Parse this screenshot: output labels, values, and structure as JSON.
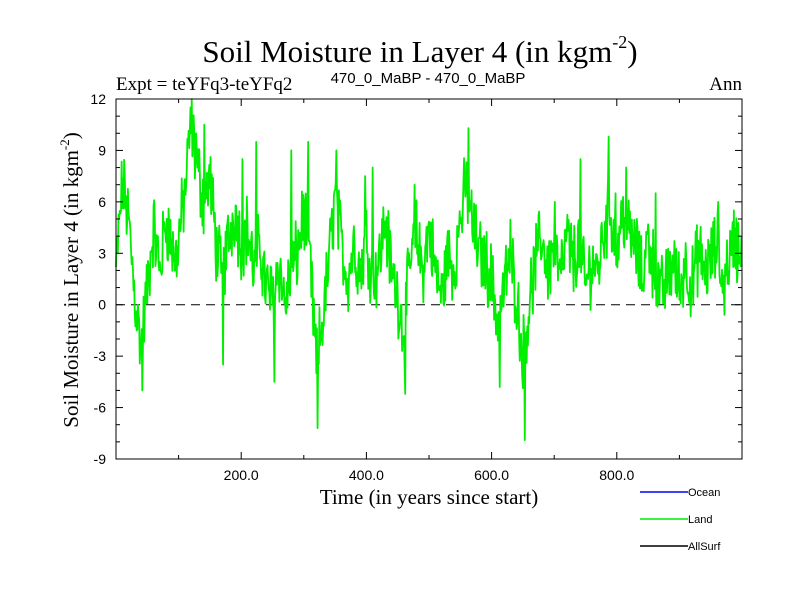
{
  "chart_data": {
    "type": "line",
    "title": "Soil Moisture in Layer 4 (in kgm",
    "title_sup": "-2",
    "title_close": ")",
    "subtitle_left": "Expt = teYFq3-teYFq2",
    "subtitle_center": "470_0_MaBP - 470_0_MaBP",
    "subtitle_right": "Ann",
    "xlabel": "Time (in years since start)",
    "ylabel": "Soil Moisture in Layer 4 (in kgm",
    "ylabel_sup": "-2",
    "ylabel_close": ")",
    "xlim": [
      0,
      1000
    ],
    "ylim": [
      -9,
      12
    ],
    "x_ticks": [
      200,
      400,
      600,
      800
    ],
    "x_tick_labels": [
      "200.0",
      "400.0",
      "600.0",
      "800.0"
    ],
    "y_ticks": [
      -9,
      -6,
      -3,
      0,
      3,
      6,
      9,
      12
    ],
    "y_tick_labels": [
      "-9",
      "-6",
      "-3",
      "0",
      "3",
      "6",
      "9",
      "12"
    ],
    "zero_line": 0,
    "legend": [
      {
        "label": "Ocean",
        "color": "#0000ff"
      },
      {
        "label": "Land",
        "color": "#00ee00"
      },
      {
        "label": "AllSurf",
        "color": "#000000"
      }
    ],
    "series": [
      {
        "name": "Land",
        "color": "#00ee00",
        "x_start": 0,
        "x_step": 1,
        "anchors": [
          [
            0,
            2.0
          ],
          [
            10,
            7.0
          ],
          [
            20,
            5.0
          ],
          [
            30,
            0.5
          ],
          [
            40,
            -2.5
          ],
          [
            50,
            1.0
          ],
          [
            60,
            4.5
          ],
          [
            70,
            2.0
          ],
          [
            80,
            5.0
          ],
          [
            95,
            2.5
          ],
          [
            110,
            6.5
          ],
          [
            120,
            10.5
          ],
          [
            130,
            8.0
          ],
          [
            140,
            6.0
          ],
          [
            150,
            7.5
          ],
          [
            160,
            3.5
          ],
          [
            170,
            1.5
          ],
          [
            180,
            4.0
          ],
          [
            190,
            5.5
          ],
          [
            200,
            3.5
          ],
          [
            210,
            4.5
          ],
          [
            220,
            2.0
          ],
          [
            230,
            3.5
          ],
          [
            240,
            1.0
          ],
          [
            250,
            0.5
          ],
          [
            260,
            2.5
          ],
          [
            270,
            0.0
          ],
          [
            280,
            2.0
          ],
          [
            290,
            3.0
          ],
          [
            300,
            5.5
          ],
          [
            310,
            2.5
          ],
          [
            320,
            -3.5
          ],
          [
            330,
            -1.0
          ],
          [
            340,
            2.5
          ],
          [
            350,
            6.5
          ],
          [
            360,
            3.5
          ],
          [
            370,
            1.5
          ],
          [
            380,
            3.5
          ],
          [
            390,
            2.0
          ],
          [
            400,
            4.0
          ],
          [
            410,
            1.5
          ],
          [
            420,
            2.5
          ],
          [
            430,
            5.0
          ],
          [
            440,
            2.0
          ],
          [
            450,
            0.5
          ],
          [
            460,
            -1.5
          ],
          [
            470,
            2.5
          ],
          [
            480,
            4.0
          ],
          [
            490,
            2.0
          ],
          [
            500,
            4.5
          ],
          [
            510,
            2.0
          ],
          [
            520,
            0.5
          ],
          [
            530,
            3.0
          ],
          [
            540,
            2.0
          ],
          [
            550,
            5.0
          ],
          [
            560,
            7.0
          ],
          [
            570,
            4.5
          ],
          [
            580,
            3.0
          ],
          [
            590,
            2.5
          ],
          [
            600,
            1.5
          ],
          [
            610,
            -1.0
          ],
          [
            620,
            1.0
          ],
          [
            630,
            3.0
          ],
          [
            640,
            0.5
          ],
          [
            650,
            -3.0
          ],
          [
            660,
            0.0
          ],
          [
            670,
            2.5
          ],
          [
            680,
            4.0
          ],
          [
            690,
            2.0
          ],
          [
            700,
            3.5
          ],
          [
            710,
            1.5
          ],
          [
            720,
            4.0
          ],
          [
            730,
            2.5
          ],
          [
            740,
            3.5
          ],
          [
            750,
            1.0
          ],
          [
            760,
            2.5
          ],
          [
            770,
            2.0
          ],
          [
            780,
            4.5
          ],
          [
            790,
            5.5
          ],
          [
            800,
            3.0
          ],
          [
            810,
            5.5
          ],
          [
            820,
            4.0
          ],
          [
            830,
            3.5
          ],
          [
            840,
            1.5
          ],
          [
            850,
            4.0
          ],
          [
            860,
            2.0
          ],
          [
            870,
            0.5
          ],
          [
            880,
            1.5
          ],
          [
            890,
            2.5
          ],
          [
            900,
            1.0
          ],
          [
            910,
            2.5
          ],
          [
            920,
            1.0
          ],
          [
            930,
            3.0
          ],
          [
            940,
            2.0
          ],
          [
            950,
            2.5
          ],
          [
            960,
            3.5
          ],
          [
            970,
            1.0
          ],
          [
            980,
            3.0
          ],
          [
            990,
            3.5
          ],
          [
            999,
            3.0
          ]
        ],
        "spikes": [
          [
            14,
            7.5
          ],
          [
            42,
            -5.0
          ],
          [
            119,
            11.5
          ],
          [
            128,
            10.0
          ],
          [
            141,
            10.5
          ],
          [
            171,
            -3.5
          ],
          [
            202,
            8.5
          ],
          [
            224,
            9.5
          ],
          [
            253,
            -4.5
          ],
          [
            280,
            9.0
          ],
          [
            307,
            9.5
          ],
          [
            322,
            -7.2
          ],
          [
            352,
            9.0
          ],
          [
            398,
            7.5
          ],
          [
            410,
            8.0
          ],
          [
            462,
            -5.2
          ],
          [
            477,
            7.0
          ],
          [
            548,
            4.5
          ],
          [
            563,
            10.3
          ],
          [
            613,
            -4.8
          ],
          [
            653,
            -7.9
          ],
          [
            701,
            6.0
          ],
          [
            742,
            8.5
          ],
          [
            787,
            9.8
          ],
          [
            798,
            6.5
          ],
          [
            815,
            8.0
          ],
          [
            862,
            6.5
          ],
          [
            962,
            6.0
          ],
          [
            987,
            5.5
          ]
        ],
        "noise": 1.7,
        "n_points": 1000
      }
    ]
  }
}
